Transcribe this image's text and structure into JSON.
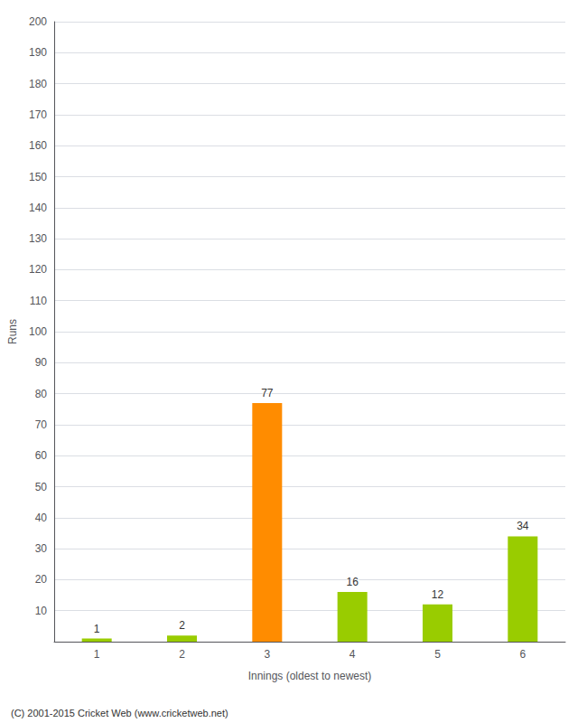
{
  "chart_data": {
    "type": "bar",
    "categories": [
      "1",
      "2",
      "3",
      "4",
      "5",
      "6"
    ],
    "values": [
      1,
      2,
      77,
      16,
      12,
      34
    ],
    "colors": [
      "#99cc00",
      "#99cc00",
      "#ff8c00",
      "#99cc00",
      "#99cc00",
      "#99cc00"
    ],
    "xlabel": "Innings (oldest to newest)",
    "ylabel": "Runs",
    "ylim": [
      0,
      200
    ],
    "yticks": [
      10,
      20,
      30,
      40,
      50,
      60,
      70,
      80,
      90,
      100,
      110,
      120,
      130,
      140,
      150,
      160,
      170,
      180,
      190,
      200
    ],
    "grid": true,
    "data_labels": true,
    "annotations": [
      "(C) 2001-2015 Cricket Web (www.cricketweb.net)"
    ]
  }
}
